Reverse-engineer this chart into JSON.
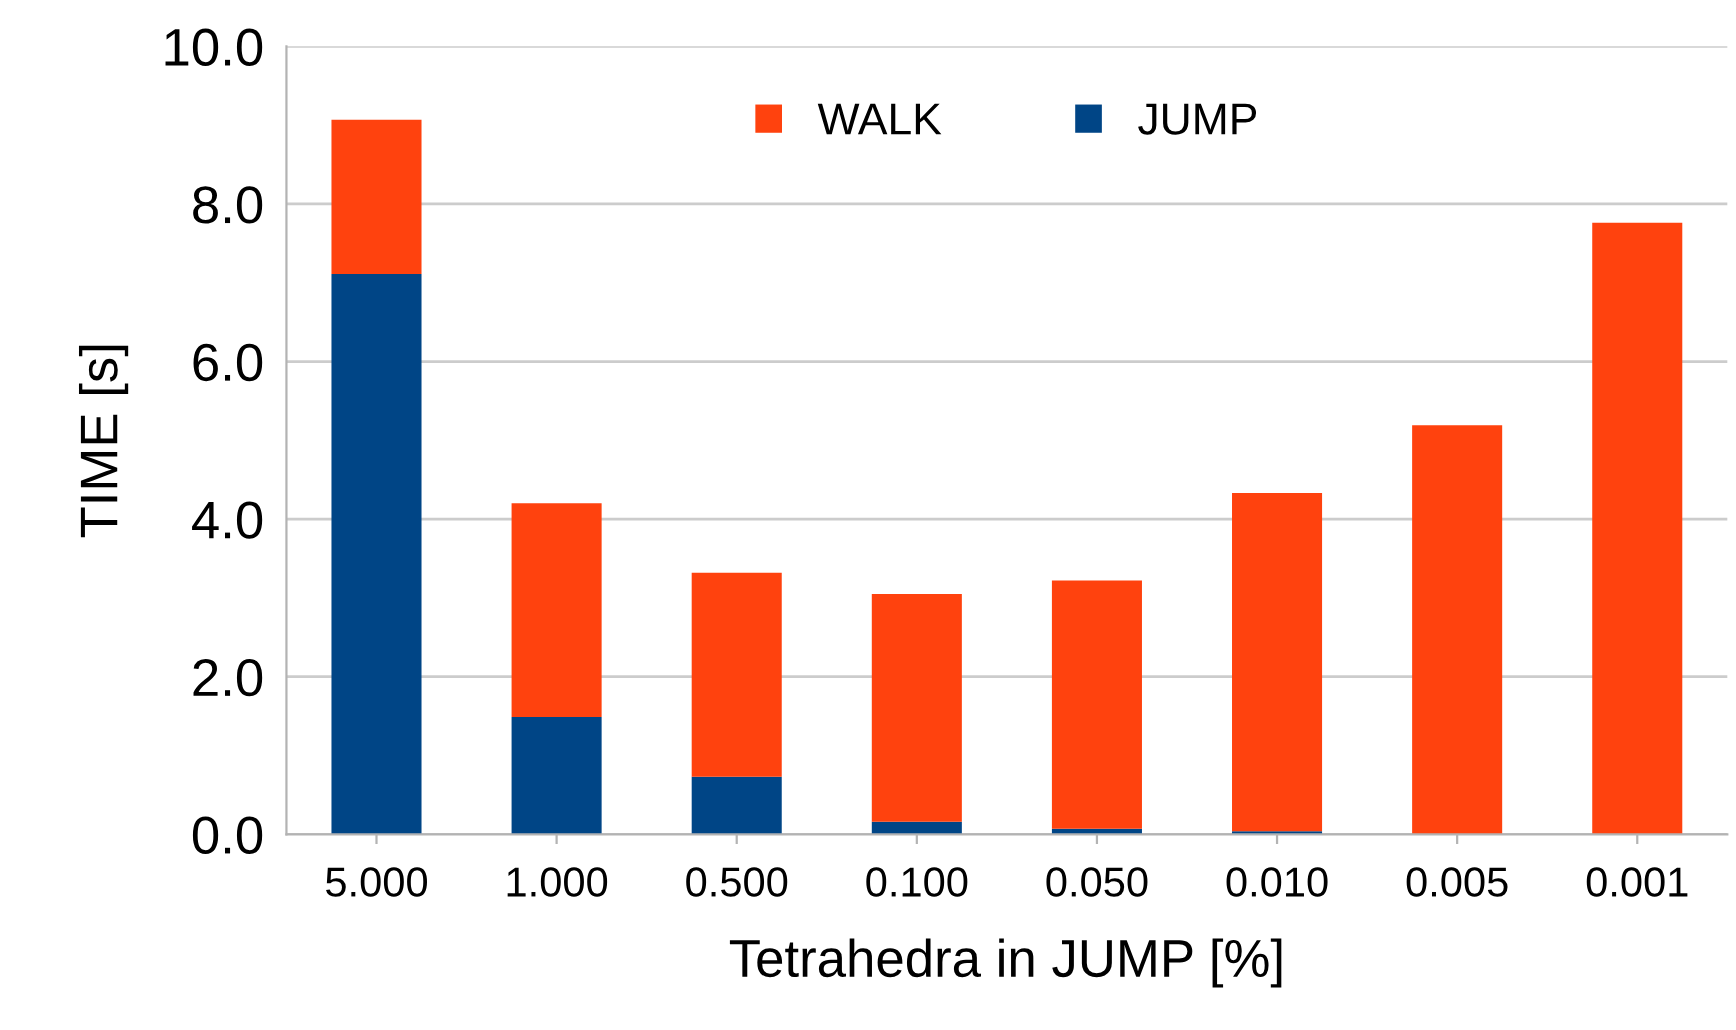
{
  "chart_data": {
    "type": "bar",
    "stacked": true,
    "xlabel": "Tetrahedra in JUMP [%]",
    "ylabel": "TIME [s]",
    "categories": [
      "5.000",
      "1.000",
      "0.500",
      "0.100",
      "0.050",
      "0.010",
      "0.005",
      "0.001"
    ],
    "series": [
      {
        "name": "JUMP",
        "color": "#004586",
        "values": [
          7.11,
          1.49,
          0.73,
          0.16,
          0.07,
          0.04,
          0,
          0
        ]
      },
      {
        "name": "WALK",
        "color": "#ff420e",
        "values": [
          1.96,
          2.71,
          2.59,
          2.89,
          3.15,
          4.29,
          5.19,
          7.76
        ]
      }
    ],
    "ylim": [
      0,
      10
    ],
    "yticks": [
      {
        "value": 0,
        "label": "0.0"
      },
      {
        "value": 2,
        "label": "2.0"
      },
      {
        "value": 4,
        "label": "4.0"
      },
      {
        "value": 6,
        "label": "6.0"
      },
      {
        "value": 8,
        "label": "8.0"
      },
      {
        "value": 10,
        "label": "10.0"
      }
    ],
    "grid": "y",
    "legend": "top"
  }
}
